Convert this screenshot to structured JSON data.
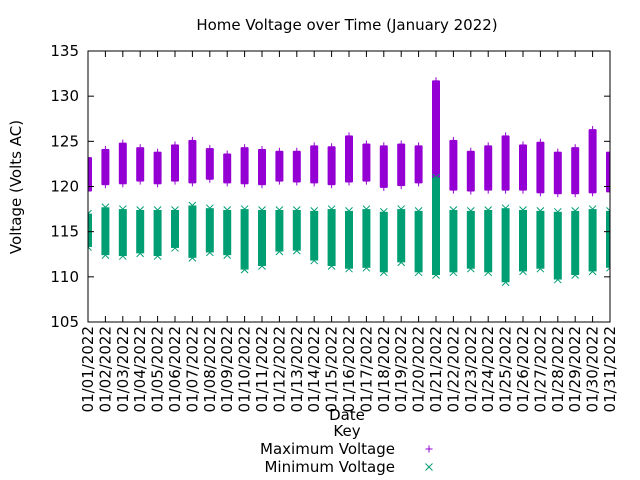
{
  "chart_data": {
    "type": "scatter",
    "title": "Home Voltage over Time (January 2022)",
    "xlabel": "Date",
    "ylabel": "Voltage (Volts AC)",
    "ylim": [
      105,
      135
    ],
    "yticks": [
      105,
      110,
      115,
      120,
      125,
      130,
      135
    ],
    "grid": false,
    "legend": {
      "title": "Key",
      "placement": "bottom-center"
    },
    "categories": [
      "01/01/2022",
      "01/02/2022",
      "01/03/2022",
      "01/04/2022",
      "01/05/2022",
      "01/06/2022",
      "01/07/2022",
      "01/08/2022",
      "01/09/2022",
      "01/10/2022",
      "01/11/2022",
      "01/12/2022",
      "01/13/2022",
      "01/14/2022",
      "01/15/2022",
      "01/16/2022",
      "01/17/2022",
      "01/18/2022",
      "01/19/2022",
      "01/20/2022",
      "01/21/2022",
      "01/22/2022",
      "01/23/2022",
      "01/24/2022",
      "01/25/2022",
      "01/26/2022",
      "01/27/2022",
      "01/28/2022",
      "01/29/2022",
      "01/30/2022",
      "01/31/2022"
    ],
    "series": [
      {
        "name": "Maximum Voltage",
        "marker": "plus",
        "color": "#9400d3",
        "low": [
          119.5,
          120.2,
          120.3,
          120.6,
          120.3,
          120.6,
          120.4,
          120.8,
          120.4,
          120.3,
          120.2,
          120.6,
          120.5,
          120.4,
          120.2,
          120.5,
          120.6,
          119.9,
          120.1,
          120.4,
          120.5,
          119.6,
          119.5,
          119.6,
          119.6,
          119.6,
          119.3,
          119.2,
          119.2,
          119.3,
          119.4
        ],
        "high": [
          123.2,
          124.1,
          124.8,
          124.3,
          123.8,
          124.6,
          125.1,
          124.2,
          123.6,
          124.3,
          124.1,
          123.9,
          123.9,
          124.5,
          124.4,
          125.6,
          124.7,
          124.5,
          124.7,
          124.5,
          131.7,
          125.1,
          123.9,
          124.5,
          125.6,
          124.6,
          124.9,
          123.8,
          124.3,
          126.3,
          123.8
        ]
      },
      {
        "name": "Minimum Voltage",
        "marker": "cross",
        "color": "#009e73",
        "low": [
          113.3,
          112.4,
          112.3,
          112.6,
          112.3,
          113.2,
          112.1,
          112.7,
          112.4,
          110.8,
          111.2,
          112.8,
          112.9,
          111.8,
          111.2,
          110.9,
          111.0,
          110.5,
          111.6,
          110.5,
          110.2,
          110.5,
          110.9,
          110.5,
          109.4,
          110.6,
          110.9,
          109.7,
          110.2,
          110.6,
          111.0
        ],
        "high": [
          117.0,
          117.7,
          117.5,
          117.4,
          117.4,
          117.4,
          117.9,
          117.6,
          117.4,
          117.5,
          117.4,
          117.4,
          117.4,
          117.3,
          117.5,
          117.3,
          117.5,
          117.2,
          117.5,
          117.3,
          121.0,
          117.4,
          117.3,
          117.4,
          117.6,
          117.4,
          117.3,
          117.2,
          117.3,
          117.5,
          117.3
        ]
      }
    ]
  }
}
